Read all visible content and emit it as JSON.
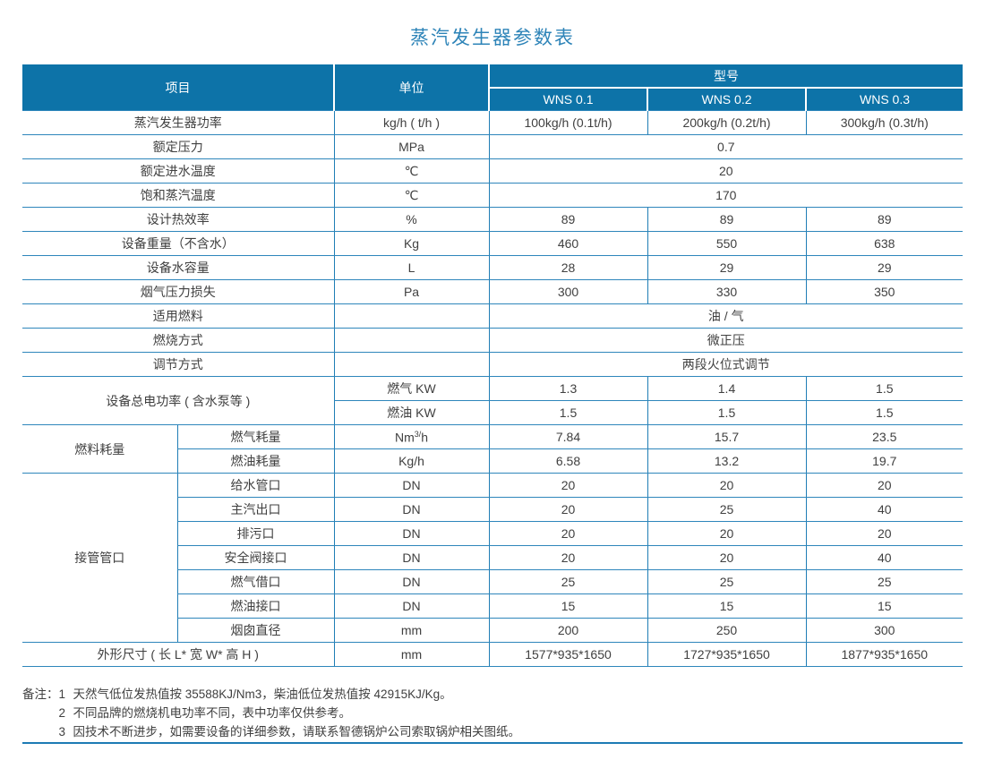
{
  "title": "蒸汽发生器参数表",
  "colors": {
    "header_bg": "#0d73a8",
    "border_blue": "#2e86bb",
    "title_blue": "#2e84b8",
    "rule_blue": "#1d7bb4",
    "text": "#404040"
  },
  "table": {
    "header": {
      "item": "项目",
      "unit": "单位",
      "model": "型号",
      "models": [
        "WNS 0.1",
        "WNS 0.2",
        "WNS 0.3"
      ]
    },
    "rows": {
      "power": {
        "label": "蒸汽发生器功率",
        "unit": "kg/h ( t/h )",
        "values": [
          "100kg/h (0.1t/h)",
          "200kg/h (0.2t/h)",
          "300kg/h (0.3t/h)"
        ]
      },
      "rated_pressure": {
        "label": "额定压力",
        "unit": "MPa",
        "value": "0.7"
      },
      "feedwater_temp": {
        "label": "额定进水温度",
        "unit": "℃",
        "value": "20"
      },
      "saturated_steam_temp": {
        "label": "饱和蒸汽温度",
        "unit": "℃",
        "value": "170"
      },
      "thermal_efficiency": {
        "label": "设计热效率",
        "unit": "%",
        "values": [
          "89",
          "89",
          "89"
        ]
      },
      "weight": {
        "label": "设备重量（不含水）",
        "unit": "Kg",
        "values": [
          "460",
          "550",
          "638"
        ]
      },
      "water_capacity": {
        "label": "设备水容量",
        "unit": "L",
        "values": [
          "28",
          "29",
          "29"
        ]
      },
      "flue_pressure_loss": {
        "label": "烟气压力损失",
        "unit": "Pa",
        "values": [
          "300",
          "330",
          "350"
        ]
      },
      "fuel_type": {
        "label": "适用燃料",
        "unit": "",
        "value": "油 / 气"
      },
      "combustion_mode": {
        "label": "燃烧方式",
        "unit": "",
        "value": "微正压"
      },
      "regulation_mode": {
        "label": "调节方式",
        "unit": "",
        "value": "两段火位式调节"
      },
      "total_electric_power": {
        "label": "设备总电功率 ( 含水泵等 )",
        "gas": {
          "unit": "燃气 KW",
          "values": [
            "1.3",
            "1.4",
            "1.5"
          ]
        },
        "oil": {
          "unit": "燃油 KW",
          "values": [
            "1.5",
            "1.5",
            "1.5"
          ]
        }
      },
      "fuel_consumption": {
        "label": "燃料耗量",
        "gas": {
          "sub": "燃气耗量",
          "unit_base": "Nm",
          "unit_sup": "3/",
          "unit_rest": "h",
          "values": [
            "7.84",
            "15.7",
            "23.5"
          ]
        },
        "oil": {
          "sub": "燃油耗量",
          "unit": "Kg/h",
          "values": [
            "6.58",
            "13.2",
            "19.7"
          ]
        }
      },
      "connections": {
        "label": "接管管口",
        "items": [
          {
            "sub": "给水管口",
            "unit": "DN",
            "values": [
              "20",
              "20",
              "20"
            ]
          },
          {
            "sub": "主汽出口",
            "unit": "DN",
            "values": [
              "20",
              "25",
              "40"
            ]
          },
          {
            "sub": "排污口",
            "unit": "DN",
            "values": [
              "20",
              "20",
              "20"
            ]
          },
          {
            "sub": "安全阀接口",
            "unit": "DN",
            "values": [
              "20",
              "20",
              "40"
            ]
          },
          {
            "sub": "燃气借口",
            "unit": "DN",
            "values": [
              "25",
              "25",
              "25"
            ]
          },
          {
            "sub": "燃油接口",
            "unit": "DN",
            "values": [
              "15",
              "15",
              "15"
            ]
          },
          {
            "sub": "烟囱直径",
            "unit": "mm",
            "values": [
              "200",
              "250",
              "300"
            ]
          }
        ]
      },
      "dimensions": {
        "label": "外形尺寸 ( 长 L* 宽 W* 高 H )",
        "unit": "mm",
        "values": [
          "1577*935*1650",
          "1727*935*1650",
          "1877*935*1650"
        ]
      }
    }
  },
  "notes": {
    "label": "备注：",
    "items": [
      {
        "num": "1",
        "text": "天然气低位发热值按 35588KJ/Nm3，柴油低位发热值按 42915KJ/Kg。"
      },
      {
        "num": "2",
        "text": "不同品牌的燃烧机电功率不同，表中功率仅供参考。"
      },
      {
        "num": "3",
        "text": "因技术不断进步，如需要设备的详细参数，请联系智德锅炉公司索取锅炉相关图纸。"
      }
    ]
  }
}
